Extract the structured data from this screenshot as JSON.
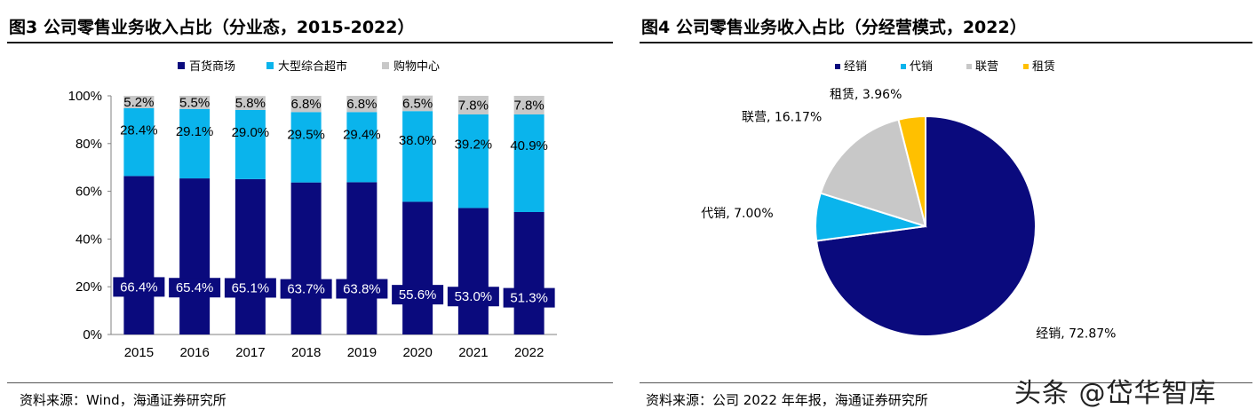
{
  "left": {
    "title": "图3  公司零售业务收入占比（分业态，2015-2022）",
    "source": "资料来源：Wind，海通证券研究所"
  },
  "right": {
    "title": "图4  公司零售业务收入占比（分经营模式，2022）",
    "source": "资料来源：公司 2022 年年报，海通证券研究所"
  },
  "watermark": "头条 @岱华智库",
  "chart_data": [
    {
      "type": "bar",
      "stacked": true,
      "title": "公司零售业务收入占比（分业态，2015-2022）",
      "categories": [
        "2015",
        "2016",
        "2017",
        "2018",
        "2019",
        "2020",
        "2021",
        "2022"
      ],
      "series": [
        {
          "name": "百货商场",
          "color": "#0a0a7d",
          "values": [
            66.4,
            65.4,
            65.1,
            63.7,
            63.8,
            55.6,
            53.0,
            51.3
          ]
        },
        {
          "name": "大型综合超市",
          "color": "#0ab4ec",
          "values": [
            28.4,
            29.1,
            29.0,
            29.5,
            29.4,
            38.0,
            39.2,
            40.9
          ]
        },
        {
          "name": "购物中心",
          "color": "#c8c8c8",
          "values": [
            5.2,
            5.5,
            5.8,
            6.8,
            6.8,
            6.5,
            7.8,
            7.8
          ]
        }
      ],
      "data_labels": [
        [
          "66.4%",
          "65.4%",
          "65.1%",
          "63.7%",
          "63.8%",
          "55.6%",
          "53.0%",
          "51.3%"
        ],
        [
          "28.4%",
          "29.1%",
          "29.0%",
          "29.5%",
          "29.4%",
          "38.0%",
          "39.2%",
          "40.9%"
        ],
        [
          "5.2%",
          "5.5%",
          "5.8%",
          "6.8%",
          "6.8%",
          "6.5%",
          "7.8%",
          "7.8%"
        ]
      ],
      "yticks": [
        "0%",
        "20%",
        "40%",
        "60%",
        "80%",
        "100%"
      ],
      "ylim": [
        0,
        100
      ],
      "legend": "top-center"
    },
    {
      "type": "pie",
      "title": "公司零售业务收入占比（分经营模式，2022）",
      "labels": [
        "经销",
        "代销",
        "联营",
        "租赁"
      ],
      "values": [
        72.87,
        7.0,
        16.17,
        3.96
      ],
      "colors": [
        "#0a0a7d",
        "#0ab4ec",
        "#c8c8c8",
        "#ffc000"
      ],
      "slice_labels": [
        "经销, 72.87%",
        "代销, 7.00%",
        "联营, 16.17%",
        "租赁, 3.96%"
      ],
      "legend": "top-center"
    }
  ]
}
